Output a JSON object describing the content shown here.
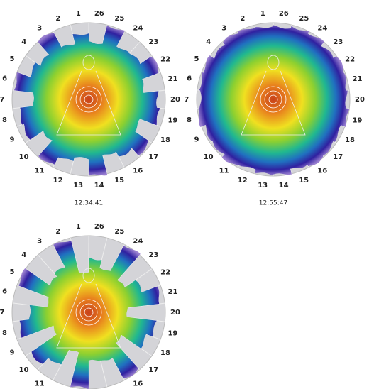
{
  "panels": [
    {
      "sectors": [
        1,
        2,
        3,
        4,
        5,
        6,
        7,
        8,
        9,
        10,
        11,
        12,
        13,
        14,
        15,
        16,
        17,
        18,
        19,
        20,
        21,
        22,
        23,
        24,
        25,
        26
      ],
      "time": "12:34:41"
    },
    {
      "sectors": [
        1,
        2,
        3,
        4,
        5,
        6,
        7,
        8,
        9,
        10,
        11,
        12,
        13,
        14,
        15,
        16,
        17,
        18,
        19,
        20,
        21,
        22,
        23,
        24,
        25,
        26
      ],
      "time": "12:55:47"
    },
    {
      "sectors": [
        1,
        2,
        3,
        4,
        5,
        6,
        7,
        8,
        9,
        10,
        11,
        null,
        null,
        null,
        null,
        16,
        17,
        18,
        19,
        20,
        21,
        22,
        23,
        24,
        25,
        26
      ]
    }
  ]
}
